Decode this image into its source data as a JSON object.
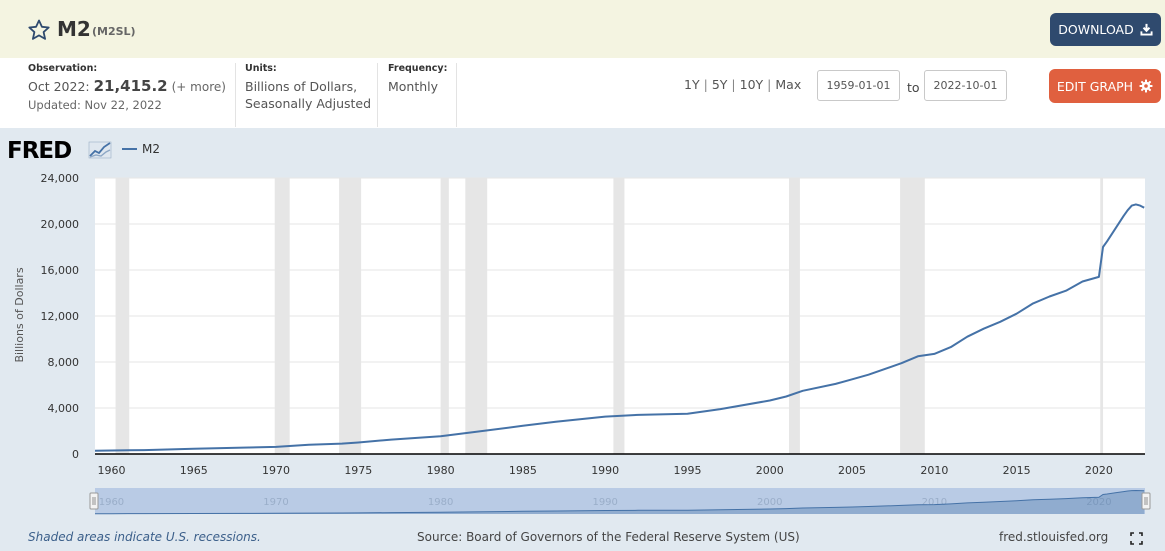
{
  "header": {
    "title": "M2",
    "series_id": "(M2SL)",
    "download_label": "DOWNLOAD"
  },
  "info": {
    "observation_label": "Observation:",
    "observation_period": "Oct 2022:",
    "observation_value": "21,415.2",
    "more": "(+ more)",
    "updated": "Updated: Nov 22, 2022",
    "units_label": "Units:",
    "units_line1": "Billions of Dollars,",
    "units_line2": "Seasonally Adjusted",
    "frequency_label": "Frequency:",
    "frequency_value": "Monthly"
  },
  "controls": {
    "ranges": [
      "1Y",
      "5Y",
      "10Y",
      "Max"
    ],
    "start_date": "1959-01-01",
    "to_word": "to",
    "end_date": "2022-10-01",
    "edit_label": "EDIT GRAPH"
  },
  "colors": {
    "header_bg": "#f4f4e1",
    "download_bg": "#2f4a6e",
    "edit_bg": "#e0603f",
    "panel_bg": "#e1e9f0",
    "series": "#4572a7",
    "recession": "#e6e6e6"
  },
  "chart_data": {
    "type": "line",
    "logo": "FRED",
    "series": [
      {
        "name": "M2",
        "x": [
          1959,
          1960,
          1962,
          1965,
          1968,
          1970,
          1972,
          1974,
          1975,
          1977,
          1980,
          1982,
          1985,
          1987,
          1990,
          1992,
          1995,
          1997,
          2000,
          2001,
          2002,
          2004,
          2005,
          2006,
          2008,
          2009,
          2010,
          2011,
          2012,
          2013,
          2014,
          2015,
          2016,
          2017,
          2018,
          2019,
          2020.0,
          2020.25,
          2020.5,
          2021.0,
          2021.5,
          2021.75,
          2022.0,
          2022.25,
          2022.5,
          2022.75
        ],
        "y": [
          287,
          305,
          340,
          460,
          560,
          620,
          800,
          900,
          1000,
          1250,
          1550,
          1900,
          2450,
          2800,
          3250,
          3400,
          3500,
          3900,
          4650,
          5000,
          5500,
          6100,
          6500,
          6900,
          7900,
          8500,
          8700,
          9300,
          10200,
          10900,
          11500,
          12200,
          13100,
          13700,
          14200,
          15000,
          15400,
          18000,
          18500,
          19600,
          20700,
          21200,
          21600,
          21700,
          21600,
          21415
        ]
      }
    ],
    "xlim": [
      1959,
      2022.8
    ],
    "ylim": [
      0,
      24000
    ],
    "yticks": [
      0,
      4000,
      8000,
      12000,
      16000,
      20000,
      24000
    ],
    "ytick_labels": [
      "0",
      "4,000",
      "8,000",
      "12,000",
      "16,000",
      "20,000",
      "24,000"
    ],
    "xticks": [
      1960,
      1965,
      1970,
      1975,
      1980,
      1985,
      1990,
      1995,
      2000,
      2005,
      2010,
      2015,
      2020
    ],
    "xtick_labels": [
      "1960",
      "1965",
      "1970",
      "1975",
      "1980",
      "1985",
      "1990",
      "1995",
      "2000",
      "2005",
      "2010",
      "2015",
      "2020"
    ],
    "navigator_labels": [
      "1960",
      "1970",
      "1980",
      "1990",
      "2000",
      "2010",
      "2020"
    ],
    "ylabel": "Billions of Dollars",
    "recessions": [
      [
        1960.25,
        1961.08
      ],
      [
        1969.92,
        1970.83
      ],
      [
        1973.83,
        1975.17
      ],
      [
        1980.0,
        1980.5
      ],
      [
        1981.5,
        1982.83
      ],
      [
        1990.5,
        1991.17
      ],
      [
        2001.17,
        2001.83
      ],
      [
        2007.92,
        2009.42
      ],
      [
        2020.08,
        2020.25
      ]
    ],
    "grid": true,
    "legend": "top-left"
  },
  "footer": {
    "note": "Shaded areas indicate U.S. recessions.",
    "source": "Source: Board of Governors of the Federal Reserve System (US)",
    "site": "fred.stlouisfed.org"
  }
}
